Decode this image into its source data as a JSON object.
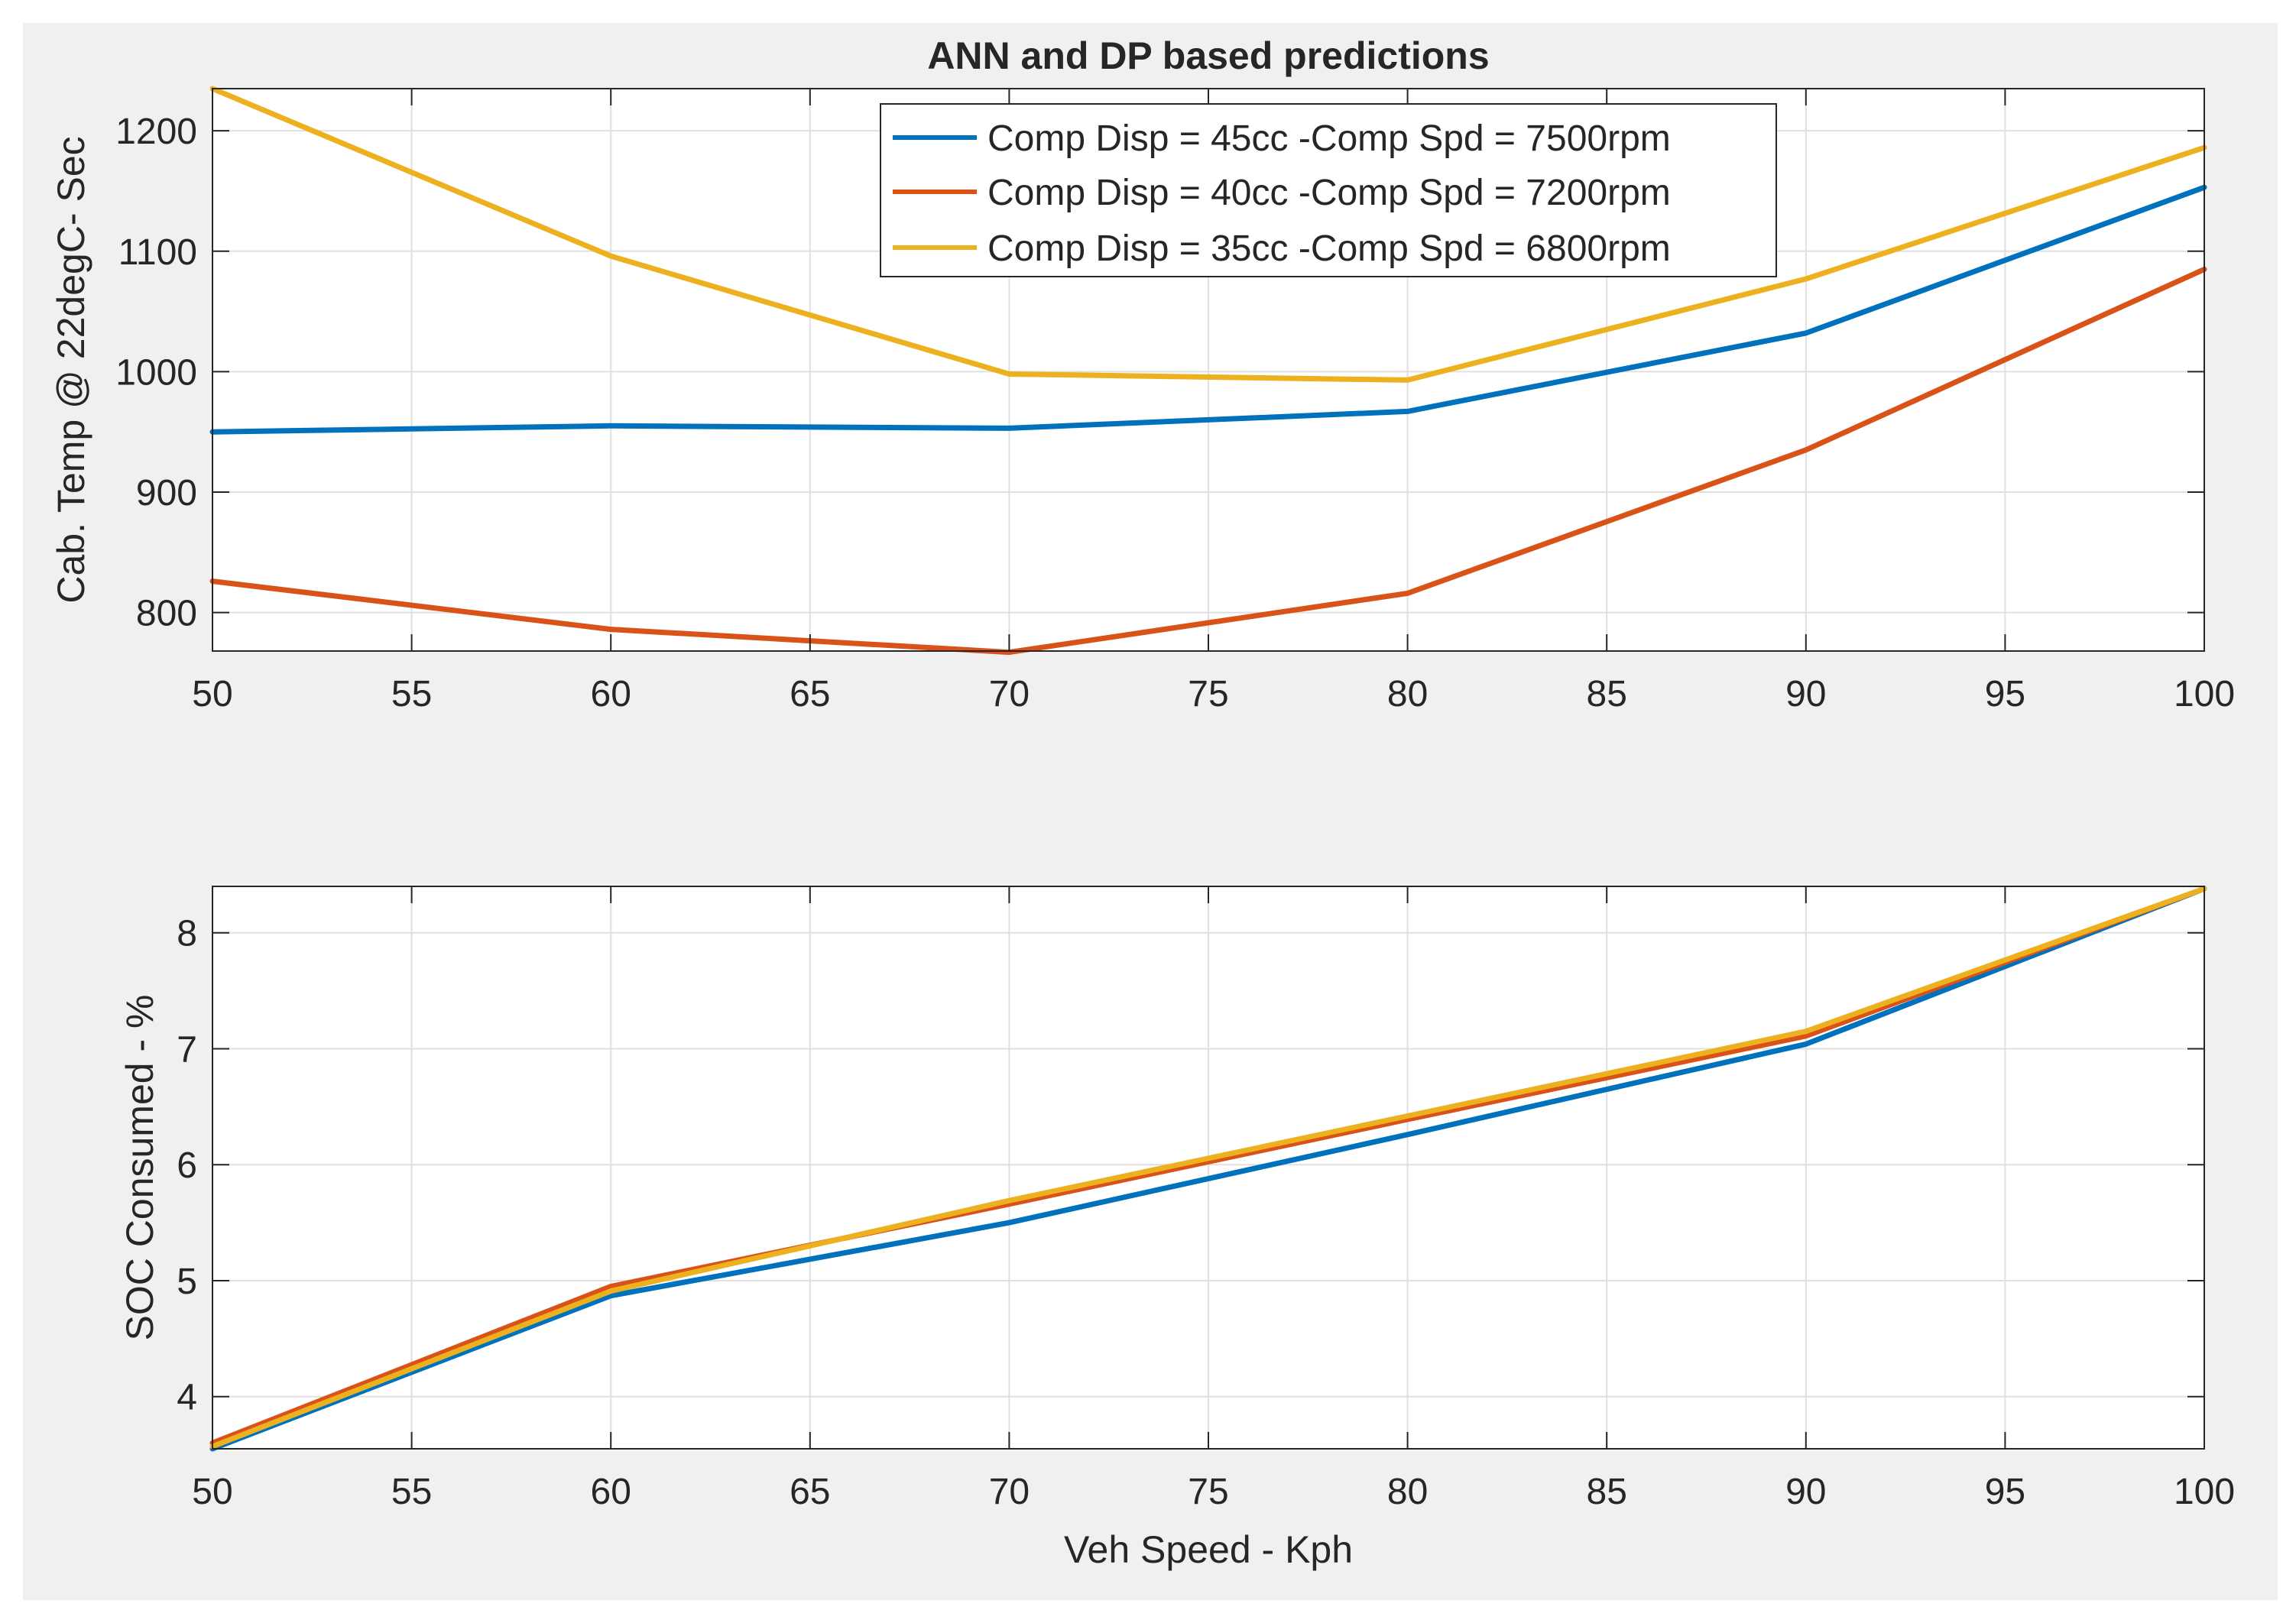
{
  "chart_data": [
    {
      "type": "line",
      "title": "ANN and DP based predictions",
      "xlabel": "",
      "ylabel": "Cab. Temp @ 22degC- Sec",
      "xlim": [
        50,
        100
      ],
      "ylim": [
        768,
        1235
      ],
      "xticks": [
        50,
        55,
        60,
        65,
        70,
        75,
        80,
        85,
        90,
        95,
        100
      ],
      "yticks": [
        800,
        900,
        1000,
        1100,
        1200
      ],
      "grid": true,
      "legend_position": "top-right",
      "x": [
        50,
        60,
        70,
        80,
        90,
        100
      ],
      "series": [
        {
          "name": "Comp Disp = 45cc -Comp Spd = 7500rpm",
          "color": "#0072BD",
          "values": [
            950,
            955,
            953,
            967,
            1032,
            1153
          ]
        },
        {
          "name": "Comp Disp = 40cc -Comp Spd = 7200rpm",
          "color": "#D95319",
          "values": [
            826,
            786,
            767,
            816,
            935,
            1085
          ]
        },
        {
          "name": "Comp Disp = 35cc -Comp Spd = 6800rpm",
          "color": "#EDB120",
          "values": [
            1235,
            1096,
            998,
            993,
            1077,
            1186
          ]
        }
      ]
    },
    {
      "type": "line",
      "title": "",
      "xlabel": "Veh Speed - Kph",
      "ylabel": "SOC Consumed - %",
      "xlim": [
        50,
        100
      ],
      "ylim": [
        3.55,
        8.4
      ],
      "xticks": [
        50,
        55,
        60,
        65,
        70,
        75,
        80,
        85,
        90,
        95,
        100
      ],
      "yticks": [
        4,
        5,
        6,
        7,
        8
      ],
      "grid": true,
      "legend_position": "none",
      "x": [
        50,
        60,
        70,
        80,
        90,
        100
      ],
      "series": [
        {
          "name": "Comp Disp = 45cc -Comp Spd = 7500rpm",
          "color": "#0072BD",
          "values": [
            3.55,
            4.87,
            5.5,
            6.26,
            7.04,
            8.38
          ]
        },
        {
          "name": "Comp Disp = 40cc -Comp Spd = 7200rpm",
          "color": "#D95319",
          "values": [
            3.6,
            4.95,
            5.66,
            6.39,
            7.11,
            8.38
          ]
        },
        {
          "name": "Comp Disp = 35cc -Comp Spd = 6800rpm",
          "color": "#EDB120",
          "values": [
            3.57,
            4.91,
            5.69,
            6.42,
            7.15,
            8.38
          ]
        }
      ]
    }
  ]
}
